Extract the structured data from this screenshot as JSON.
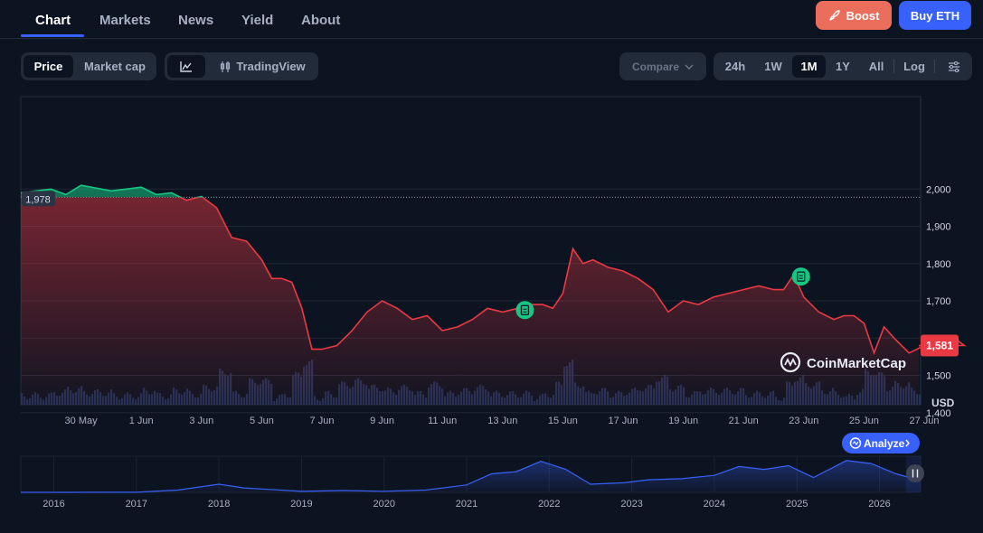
{
  "nav": {
    "tabs": [
      "Chart",
      "Markets",
      "News",
      "Yield",
      "About"
    ],
    "boost_label": "Boost",
    "buy_label": "Buy ETH"
  },
  "toolbar": {
    "view_tabs": [
      "Price",
      "Market cap"
    ],
    "tradingview_label": "TradingView",
    "compare_label": "Compare",
    "ranges": [
      "24h",
      "1W",
      "1M",
      "1Y",
      "All"
    ],
    "active_range": "1M",
    "log_label": "Log"
  },
  "badges": {
    "open_price": "1,978",
    "current_price": "1,581"
  },
  "watermark": "CoinMarketCap",
  "analyze_label": "Analyze",
  "colors": {
    "up": "#16c784",
    "down": "#ea3943",
    "accent": "#3861fb",
    "boost": "#ea6e5b"
  },
  "chart_data": [
    {
      "type": "line",
      "title": "",
      "currency_label": "USD",
      "y_ticks": [
        "2,000",
        "1,900",
        "1,800",
        "1,700",
        "1,600",
        "1,500",
        "1,400"
      ],
      "ylim": [
        1380,
        2100
      ],
      "reference_price": 1978,
      "x_ticks": [
        "30 May",
        "1 Jun",
        "3 Jun",
        "5 Jun",
        "7 Jun",
        "9 Jun",
        "11 Jun",
        "13 Jun",
        "15 Jun",
        "17 Jun",
        "19 Jun",
        "21 Jun",
        "23 Jun",
        "25 Jun",
        "27 Jun"
      ],
      "x": [
        "28 May",
        "28 May",
        "29 May",
        "29 May",
        "30 May",
        "31 May",
        "31 May",
        "1 Jun",
        "1 Jun",
        "2 Jun",
        "2 Jun",
        "3 Jun",
        "3 Jun",
        "4 Jun",
        "4 Jun",
        "5 Jun",
        "5 Jun",
        "5 Jun",
        "6 Jun",
        "6 Jun",
        "6 Jun",
        "7 Jun",
        "7 Jun",
        "8 Jun",
        "8 Jun",
        "9 Jun",
        "9 Jun",
        "10 Jun",
        "10 Jun",
        "11 Jun",
        "11 Jun",
        "12 Jun",
        "12 Jun",
        "13 Jun",
        "13 Jun",
        "14 Jun",
        "14 Jun",
        "14 Jun",
        "15 Jun",
        "15 Jun",
        "15 Jun",
        "16 Jun",
        "16 Jun",
        "17 Jun",
        "17 Jun",
        "18 Jun",
        "18 Jun",
        "19 Jun",
        "19 Jun",
        "20 Jun",
        "21 Jun",
        "21 Jun",
        "22 Jun",
        "22 Jun",
        "22 Jun",
        "23 Jun",
        "23 Jun",
        "24 Jun",
        "24 Jun",
        "24 Jun",
        "25 Jun",
        "25 Jun",
        "25 Jun",
        "26 Jun",
        "26 Jun",
        "27 Jun",
        "27 Jun",
        "28 Jun",
        "28 Jun",
        "28 Jun"
      ],
      "series": [
        {
          "values": [
            1990,
            1995,
            2000,
            1985,
            2010,
            1995,
            2000,
            2005,
            1985,
            1990,
            1970,
            1980,
            1950,
            1870,
            1860,
            1810,
            1760,
            1760,
            1750,
            1680,
            1570,
            1570,
            1580,
            1620,
            1670,
            1700,
            1680,
            1650,
            1660,
            1620,
            1630,
            1650,
            1680,
            1670,
            1680,
            1690,
            1690,
            1680,
            1720,
            1840,
            1800,
            1810,
            1790,
            1780,
            1760,
            1730,
            1670,
            1700,
            1690,
            1710,
            1730,
            1740,
            1730,
            1730,
            1770,
            1710,
            1670,
            1650,
            1660,
            1660,
            1640,
            1560,
            1630,
            1600,
            1560,
            1580,
            1590,
            1600,
            1580,
            1580
          ]
        }
      ],
      "markers": [
        "13 Jun",
        "22 Jun"
      ],
      "grid": true,
      "legend": "none"
    },
    {
      "type": "area",
      "title": "",
      "x_ticks": [
        "2016",
        "2017",
        "2018",
        "2019",
        "2020",
        "2021",
        "2022",
        "2023",
        "2024",
        "2025",
        "2026"
      ],
      "xlim": [
        2015.6,
        2026.5
      ],
      "x": [
        2015.6,
        2016.0,
        2016.5,
        2017.0,
        2017.5,
        2018.0,
        2018.3,
        2018.6,
        2019.0,
        2019.5,
        2020.0,
        2020.5,
        2021.0,
        2021.3,
        2021.6,
        2021.9,
        2022.2,
        2022.5,
        2022.9,
        2023.2,
        2023.6,
        2024.0,
        2024.3,
        2024.6,
        2024.9,
        2025.2,
        2025.6,
        2025.9,
        2026.2,
        2026.5
      ],
      "series": [
        {
          "values": [
            1,
            5,
            12,
            10,
            300,
            1100,
            600,
            400,
            130,
            250,
            150,
            300,
            1000,
            2500,
            2800,
            4200,
            3100,
            1100,
            1300,
            1700,
            1850,
            2300,
            3500,
            3100,
            3600,
            2000,
            4300,
            3900,
            2500,
            1600
          ]
        }
      ],
      "grid": false,
      "legend": "none"
    }
  ]
}
